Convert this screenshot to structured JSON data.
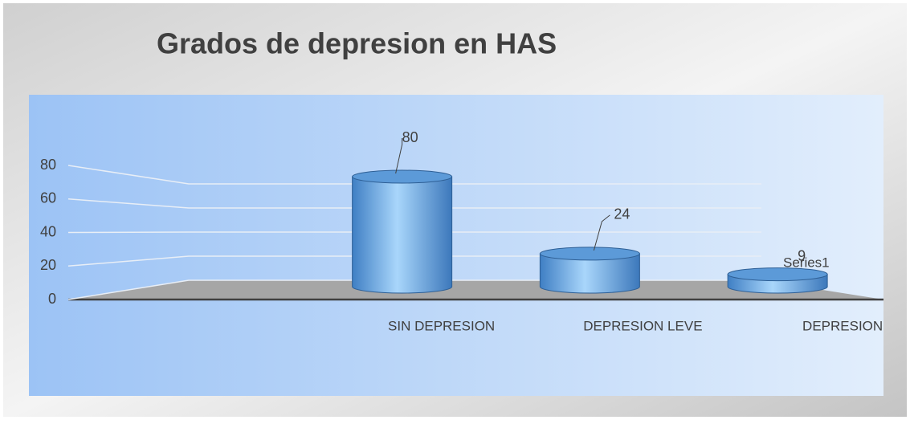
{
  "chart_data": {
    "type": "bar3d",
    "title": "Grados de depresion en HAS",
    "categories": [
      null,
      "SIN DEPRESION",
      "DEPRESION LEVE",
      "DEPRESION"
    ],
    "series": [
      {
        "name": "Series1",
        "color": "#5b9bd5",
        "values": [
          null,
          80,
          24,
          9
        ]
      }
    ],
    "ylim": [
      0,
      80
    ],
    "yticks": [
      0,
      20,
      40,
      60,
      80
    ],
    "grid": true,
    "legend": "right"
  }
}
